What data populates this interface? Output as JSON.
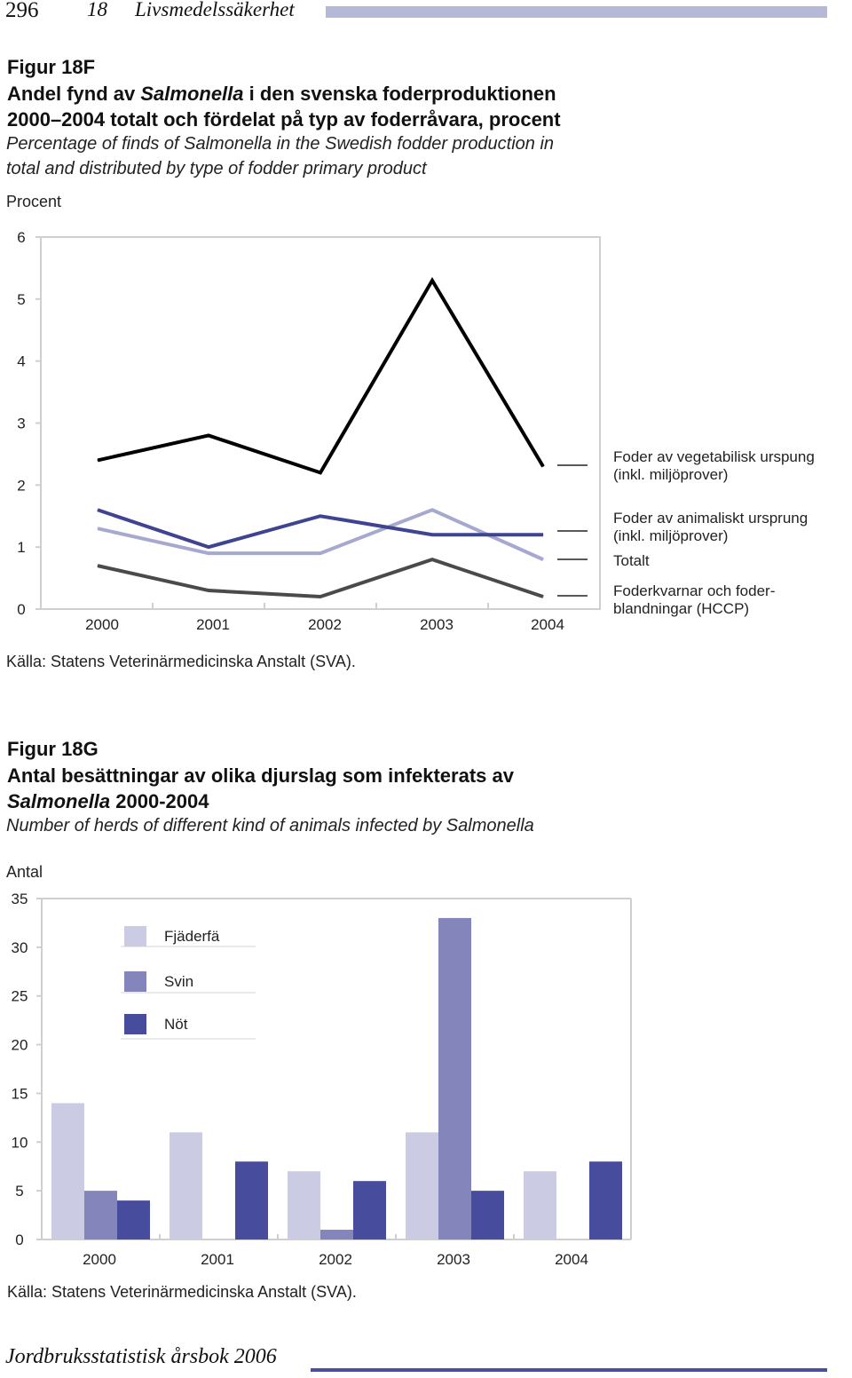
{
  "header": {
    "page_number": "296",
    "chapter": "18",
    "section": "Livsmedelssäkerhet"
  },
  "fig1": {
    "number": "Figur 18F",
    "title_pre": "Andel fynd av ",
    "title_em": "Salmonella",
    "title_post": " i den svenska foderproduktionen",
    "title_line2": "2000–2004 totalt och fördelat på typ av foderråvara, procent",
    "subtitle_line1": "Percentage of finds of Salmonella in the Swedish fodder production in",
    "subtitle_line2": "total and distributed by type of fodder primary product",
    "unit": "Procent",
    "source": "Källa: Statens Veterinärmedicinska Anstalt (SVA).",
    "legend": [
      {
        "line1": "Foder av vegetabilisk urspung",
        "line2": "(inkl. miljöprover)"
      },
      {
        "line1": "Foder av animaliskt ursprung",
        "line2": "(inkl. miljöprover)"
      },
      {
        "line1": "Totalt",
        "line2": ""
      },
      {
        "line1": "Foderkvarnar och foder-",
        "line2": "blandningar (HCCP)"
      }
    ]
  },
  "fig2": {
    "number": "Figur 18G",
    "title_pre": "Antal besättningar av olika djurslag som infekterats av",
    "title_em": "Salmonella",
    "title_post": " 2000-2004",
    "subtitle": "Number of herds of different kind of animals infected by Salmonella",
    "unit": "Antal",
    "source": "Källa: Statens Veterinärmedicinska Anstalt (SVA)."
  },
  "footer": {
    "text": "Jordbruksstatistisk årsbok 2006"
  },
  "chart_data": [
    {
      "type": "line",
      "x": [
        "2000",
        "2001",
        "2002",
        "2003",
        "2004"
      ],
      "ylim": [
        0,
        6
      ],
      "yticks": [
        0,
        1,
        2,
        3,
        4,
        5,
        6
      ],
      "grid": false,
      "legend_position": "right",
      "series": [
        {
          "name": "Foder av vegetabilisk urspung (inkl. miljöprover)",
          "values": [
            2.4,
            2.8,
            2.2,
            5.3,
            2.3
          ],
          "color": "#000000"
        },
        {
          "name": "Foder av animaliskt ursprung (inkl. miljöprover)",
          "values": [
            1.6,
            1.0,
            1.5,
            1.2,
            1.2
          ],
          "color": "#3f4492"
        },
        {
          "name": "Totalt",
          "values": [
            1.3,
            0.9,
            0.9,
            1.6,
            0.8
          ],
          "color": "#a6a9cf"
        },
        {
          "name": "Foderkvarnar och foder-blandningar (HCCP)",
          "values": [
            0.7,
            0.3,
            0.2,
            0.8,
            0.2
          ],
          "color": "#4a4a4a"
        }
      ]
    },
    {
      "type": "bar",
      "categories": [
        "2000",
        "2001",
        "2002",
        "2003",
        "2004"
      ],
      "ylim": [
        0,
        35
      ],
      "yticks": [
        0,
        5,
        10,
        15,
        20,
        25,
        30,
        35
      ],
      "grid": false,
      "legend_position": "top-left",
      "series": [
        {
          "name": "Fjäderfä",
          "values": [
            14,
            11,
            7,
            11,
            7
          ],
          "color": "#cbcce3"
        },
        {
          "name": "Svin",
          "values": [
            5,
            0,
            1,
            33,
            0
          ],
          "color": "#8485bb"
        },
        {
          "name": "Nöt",
          "values": [
            4,
            8,
            6,
            5,
            8
          ],
          "color": "#484c9c"
        }
      ]
    }
  ]
}
